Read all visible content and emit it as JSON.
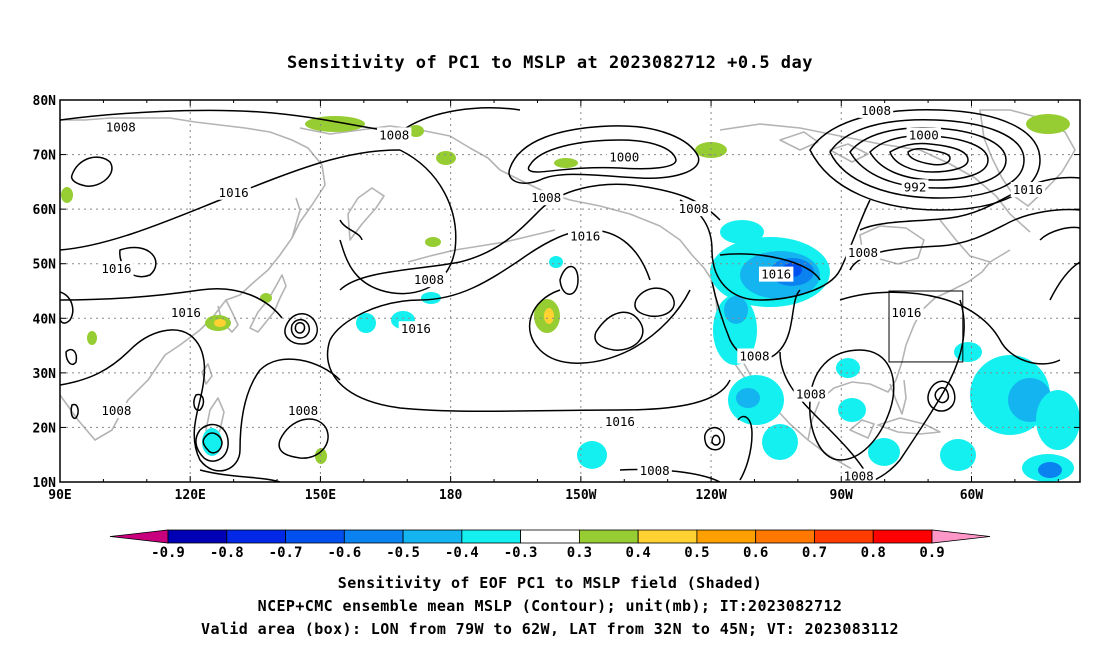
{
  "title": "Sensitivity of PC1 to MSLP at 2023082712 +0.5 day",
  "map": {
    "lon_labels": [
      "90E",
      "120E",
      "150E",
      "180",
      "150W",
      "120W",
      "90W",
      "60W"
    ],
    "lat_labels": [
      "80N",
      "70N",
      "60N",
      "50N",
      "40N",
      "30N",
      "20N",
      "10N"
    ],
    "contour_labels": [
      {
        "text": "1008",
        "lon": 104,
        "lat": 75
      },
      {
        "text": "1008",
        "lon": 167,
        "lat": 73.5
      },
      {
        "text": "1016",
        "lon": 130,
        "lat": 63
      },
      {
        "text": "1016",
        "lon": 103,
        "lat": 49
      },
      {
        "text": "1016",
        "lon": 119,
        "lat": 41
      },
      {
        "text": "1008",
        "lon": 103,
        "lat": 23
      },
      {
        "text": "1008",
        "lon": 146,
        "lat": 23
      },
      {
        "text": "1008",
        "lon": 175,
        "lat": 47
      },
      {
        "text": "1016",
        "lon": 172,
        "lat": 38
      },
      {
        "text": "1000",
        "lon": -140,
        "lat": 69.5
      },
      {
        "text": "1008",
        "lon": -158,
        "lat": 62
      },
      {
        "text": "1016",
        "lon": -149,
        "lat": 55
      },
      {
        "text": "1008",
        "lon": -124,
        "lat": 60
      },
      {
        "text": "1016",
        "lon": -105,
        "lat": 48
      },
      {
        "text": "1008",
        "lon": -110,
        "lat": 33
      },
      {
        "text": "1016",
        "lon": -141,
        "lat": 21
      },
      {
        "text": "1008",
        "lon": -133,
        "lat": 12
      },
      {
        "text": "1008",
        "lon": -82,
        "lat": 78
      },
      {
        "text": "1000",
        "lon": -71,
        "lat": 73.5
      },
      {
        "text": "992",
        "lon": -73,
        "lat": 64
      },
      {
        "text": "1016",
        "lon": -47,
        "lat": 63.5
      },
      {
        "text": "1008",
        "lon": -85,
        "lat": 52
      },
      {
        "text": "1016",
        "lon": -75,
        "lat": 41
      },
      {
        "text": "1008",
        "lon": -97,
        "lat": 26
      },
      {
        "text": "1008",
        "lon": -86,
        "lat": 11
      }
    ],
    "valid_box": {
      "lon_min": -79,
      "lon_max": -62,
      "lat_min": 32,
      "lat_max": 45
    }
  },
  "colorbar": {
    "colors": [
      "#c8007d",
      "#0000b4",
      "#0028e6",
      "#0050f0",
      "#0a82f0",
      "#14b4f0",
      "#14f0f0",
      "#ffffff",
      "#96cd32",
      "#ffd232",
      "#ffa000",
      "#ff7800",
      "#ff3c00",
      "#ff0000",
      "#ff96c8"
    ],
    "labels": [
      "-0.9",
      "-0.8",
      "-0.7",
      "-0.6",
      "-0.5",
      "-0.4",
      "-0.3",
      "0.3",
      "0.4",
      "0.5",
      "0.6",
      "0.7",
      "0.8",
      "0.9"
    ]
  },
  "caption": {
    "line1": "Sensitivity of EOF PC1 to MSLP field (Shaded)",
    "line2": "NCEP+CMC ensemble mean MSLP (Contour); unit(mb); IT:2023082712",
    "line3": "Valid area (box): LON from 79W to 62W, LAT from 32N to 45N; VT: 2023083112"
  }
}
